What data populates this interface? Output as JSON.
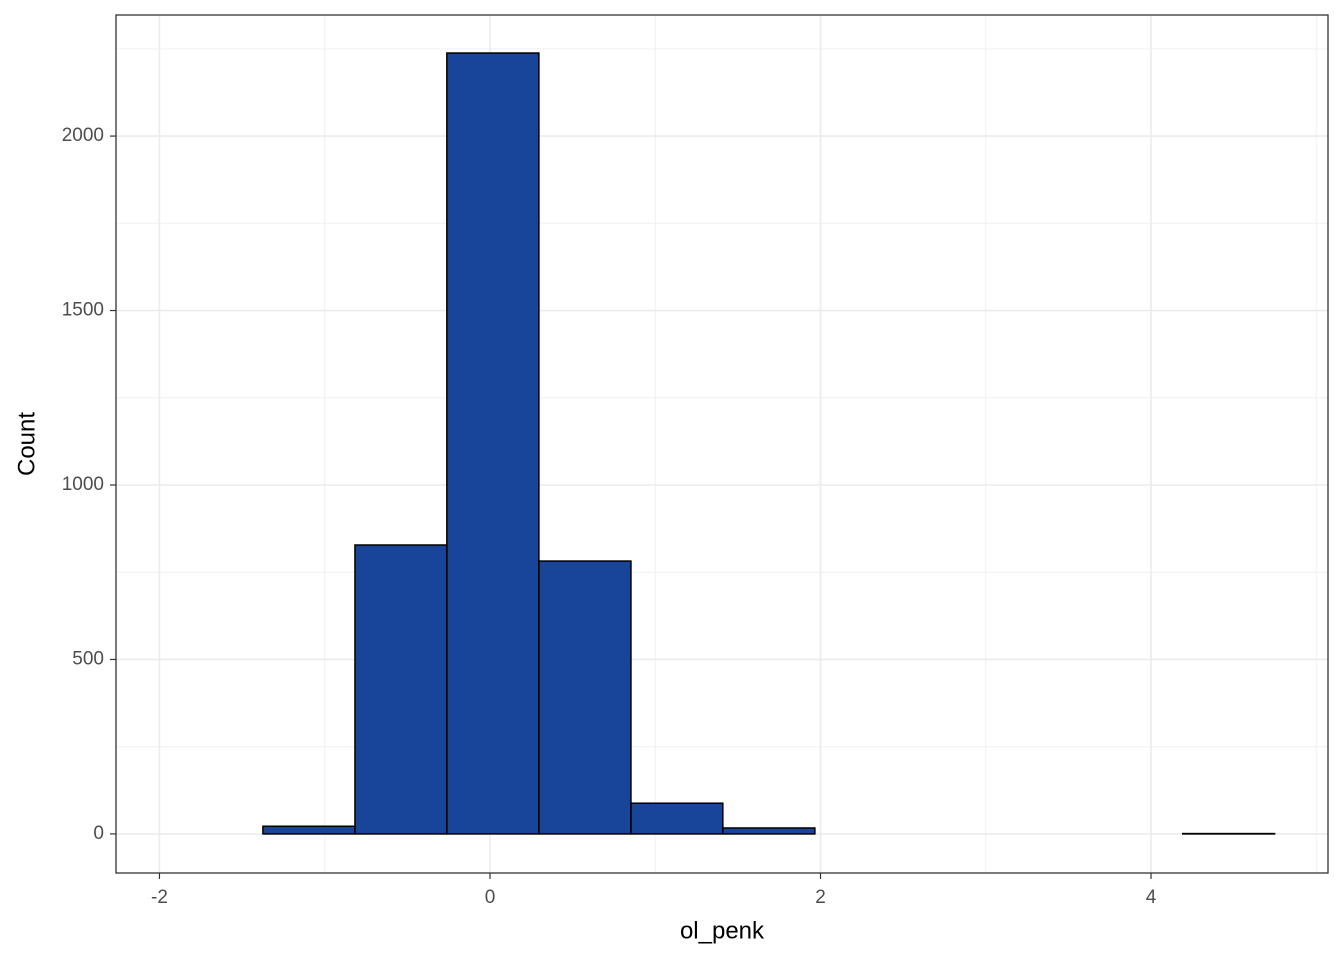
{
  "chart_data": {
    "type": "histogram",
    "x_label": "ol_penk",
    "y_label": "Count",
    "bins": [
      -1.93,
      -1.374,
      -0.817,
      -0.261,
      0.296,
      0.853,
      1.409,
      1.966,
      2.522,
      3.079,
      3.635,
      4.192,
      4.748
    ],
    "counts": [
      0,
      22,
      828,
      2238,
      782,
      88,
      17,
      0,
      0,
      0,
      0,
      1
    ],
    "color": "#18449a",
    "xlim": [
      -2.263,
      5.071
    ],
    "xticks": [
      -2,
      0,
      2,
      4
    ],
    "minor_xticks": [
      -1,
      1,
      3,
      5
    ],
    "ylim": [
      -112,
      2347
    ],
    "yticks": [
      0,
      500,
      1000,
      1500,
      2000
    ],
    "minor_yticks": [
      250,
      750,
      1250,
      1750,
      2250
    ],
    "grid": true
  }
}
